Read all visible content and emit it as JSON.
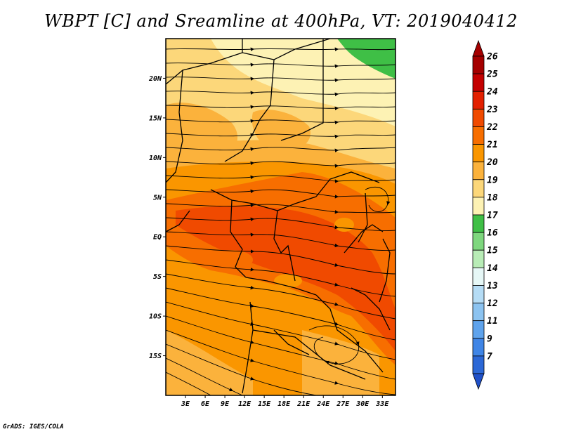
{
  "title": "WBPT [C] and Sreamline at 400hPa, VT: 2019040412",
  "credit": "GrADS: IGES/COLA",
  "map": {
    "lat_range": [
      -20,
      25
    ],
    "lon_range": [
      0,
      35
    ],
    "lat_ticks": [
      {
        "value": 20,
        "label": "20N"
      },
      {
        "value": 15,
        "label": "15N"
      },
      {
        "value": 10,
        "label": "10N"
      },
      {
        "value": 5,
        "label": "5N"
      },
      {
        "value": 0,
        "label": "EQ"
      },
      {
        "value": -5,
        "label": "5S"
      },
      {
        "value": -10,
        "label": "10S"
      },
      {
        "value": -15,
        "label": "15S"
      }
    ],
    "lon_ticks": [
      {
        "value": 3,
        "label": "3E"
      },
      {
        "value": 6,
        "label": "6E"
      },
      {
        "value": 9,
        "label": "9E"
      },
      {
        "value": 12,
        "label": "12E"
      },
      {
        "value": 15,
        "label": "15E"
      },
      {
        "value": 18,
        "label": "18E"
      },
      {
        "value": 21,
        "label": "21E"
      },
      {
        "value": 24,
        "label": "24E"
      },
      {
        "value": 27,
        "label": "27E"
      },
      {
        "value": 30,
        "label": "30E"
      },
      {
        "value": 33,
        "label": "33E"
      }
    ]
  },
  "colorbar": {
    "levels": [
      {
        "label": "26",
        "color": "#a50000"
      },
      {
        "label": "25",
        "color": "#c40000"
      },
      {
        "label": "24",
        "color": "#e32000"
      },
      {
        "label": "23",
        "color": "#f04a00"
      },
      {
        "label": "22",
        "color": "#f76e00"
      },
      {
        "label": "21",
        "color": "#fa9600"
      },
      {
        "label": "20",
        "color": "#fbb23c"
      },
      {
        "label": "19",
        "color": "#fcd77a"
      },
      {
        "label": "18",
        "color": "#fdf2b4"
      },
      {
        "label": "17",
        "color": "#3fbf46"
      },
      {
        "label": "16",
        "color": "#7ed77e"
      },
      {
        "label": "15",
        "color": "#b8ecb6"
      },
      {
        "label": "14",
        "color": "#e6f7f6"
      },
      {
        "label": "13",
        "color": "#b5dcf5"
      },
      {
        "label": "12",
        "color": "#8cc3f0"
      },
      {
        "label": "11",
        "color": "#5fa3ec"
      },
      {
        "label": "9",
        "color": "#3f85e6"
      },
      {
        "label": "7",
        "color": "#2c68d6"
      }
    ],
    "bottom_color": "#1f50c8",
    "top_color": "#a50000"
  }
}
